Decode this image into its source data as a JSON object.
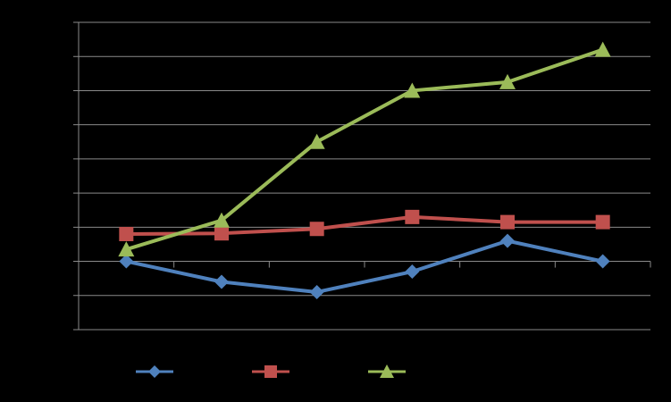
{
  "chart_data": {
    "type": "line",
    "categories": [
      "",
      "",
      "",
      "",
      "",
      ""
    ],
    "ylim": [
      -2,
      7
    ],
    "y_gridlines": [
      -2,
      -1,
      0,
      1,
      2,
      3,
      4,
      5,
      6,
      7
    ],
    "x_axis_at": 0,
    "grid": true,
    "legend_position": "bottom-left",
    "series": [
      {
        "color": "#4f81bd",
        "marker": "diamond",
        "values": [
          0,
          -0.6,
          -0.9,
          -0.3,
          0.6,
          0
        ]
      },
      {
        "color": "#c0504d",
        "marker": "square",
        "values": [
          0.8,
          0.82,
          0.95,
          1.3,
          1.15,
          1.15
        ]
      },
      {
        "color": "#9bbb59",
        "marker": "triangle",
        "values": [
          0.35,
          1.2,
          3.5,
          5.0,
          5.25,
          6.2
        ]
      }
    ]
  }
}
